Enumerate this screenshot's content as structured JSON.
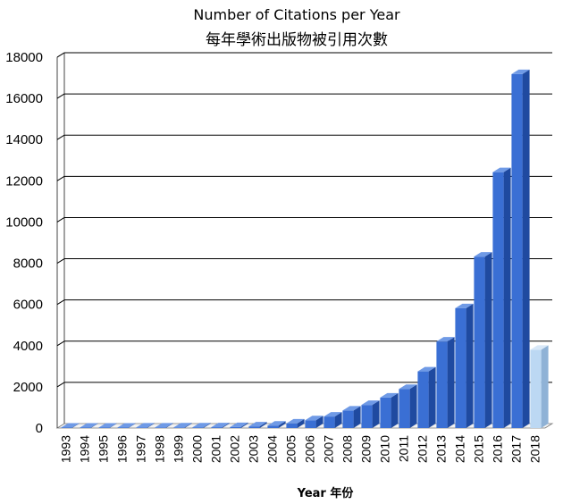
{
  "chart_data": {
    "type": "bar",
    "title": "Number of Citations per Year",
    "subtitle": "每年學術出版物被引用次數",
    "xlabel": "Year 年份",
    "ylabel": "",
    "ylim": [
      0,
      18000
    ],
    "yticks": [
      0,
      2000,
      4000,
      6000,
      8000,
      10000,
      12000,
      14000,
      16000,
      18000
    ],
    "ytick_labels": [
      "0",
      "2000",
      "4000",
      "6000",
      "8000",
      "10000",
      "12000",
      "14000",
      "16000",
      "18000"
    ],
    "grid": true,
    "categories": [
      "1993",
      "1994",
      "1995",
      "1996",
      "1997",
      "1998",
      "1999",
      "2000",
      "2001",
      "2002",
      "2003",
      "2004",
      "2005",
      "2006",
      "2007",
      "2008",
      "2009",
      "2010",
      "2011",
      "2012",
      "2013",
      "2014",
      "2015",
      "2016",
      "2017",
      "2018"
    ],
    "values": [
      20,
      20,
      20,
      20,
      25,
      25,
      30,
      35,
      40,
      50,
      80,
      120,
      220,
      380,
      560,
      850,
      1120,
      1480,
      1900,
      2750,
      4200,
      5820,
      8320,
      12420,
      17180,
      3800
    ],
    "colors": {
      "bar_front": "#3a6fd4",
      "bar_top": "#6f9ae6",
      "bar_side": "#1f4aa0",
      "highlight_front": "#bcd8f3",
      "highlight_top": "#d8e8f8",
      "highlight_side": "#8fb2d6",
      "grid": "#000000"
    },
    "highlighted_category": "2018"
  }
}
